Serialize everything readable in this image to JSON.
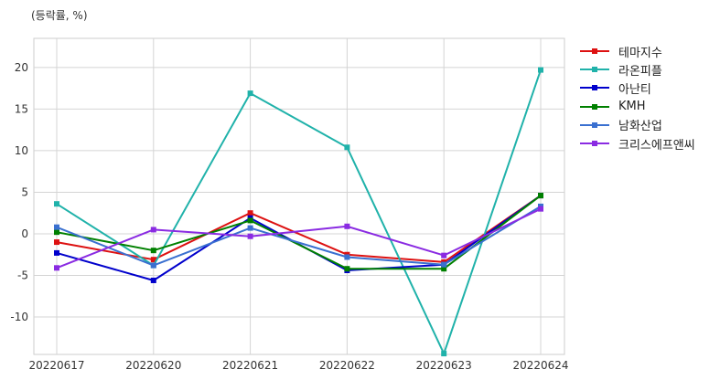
{
  "unit_label": "(등락률, %)",
  "chart_data": {
    "type": "line",
    "x": [
      "20220617",
      "20220620",
      "20220621",
      "20220622",
      "20220623",
      "20220624"
    ],
    "ylim": [
      -14.5,
      23.5
    ],
    "yticks": [
      -10,
      -5,
      0,
      5,
      10,
      15,
      20
    ],
    "grid": true,
    "legend_position": "right",
    "series": [
      {
        "name": "테마지수",
        "color": "#dd1111",
        "values": [
          -1.0,
          -3.1,
          2.5,
          -2.5,
          -3.4,
          4.6
        ]
      },
      {
        "name": "라온피플",
        "color": "#20b2aa",
        "values": [
          3.6,
          -3.8,
          16.9,
          10.4,
          -14.4,
          19.7
        ]
      },
      {
        "name": "아난티",
        "color": "#0000cc",
        "values": [
          -2.3,
          -5.6,
          1.9,
          -4.4,
          -3.7,
          4.6
        ]
      },
      {
        "name": "KMH",
        "color": "#008000",
        "values": [
          0.2,
          -2.0,
          1.6,
          -4.2,
          -4.2,
          4.6
        ]
      },
      {
        "name": "남화산업",
        "color": "#3a70d0",
        "values": [
          0.8,
          -3.8,
          0.7,
          -2.8,
          -3.7,
          3.3
        ]
      },
      {
        "name": "크리스에프앤씨",
        "color": "#8a2be2",
        "values": [
          -4.1,
          0.5,
          -0.3,
          0.9,
          -2.6,
          3.0
        ]
      }
    ]
  }
}
